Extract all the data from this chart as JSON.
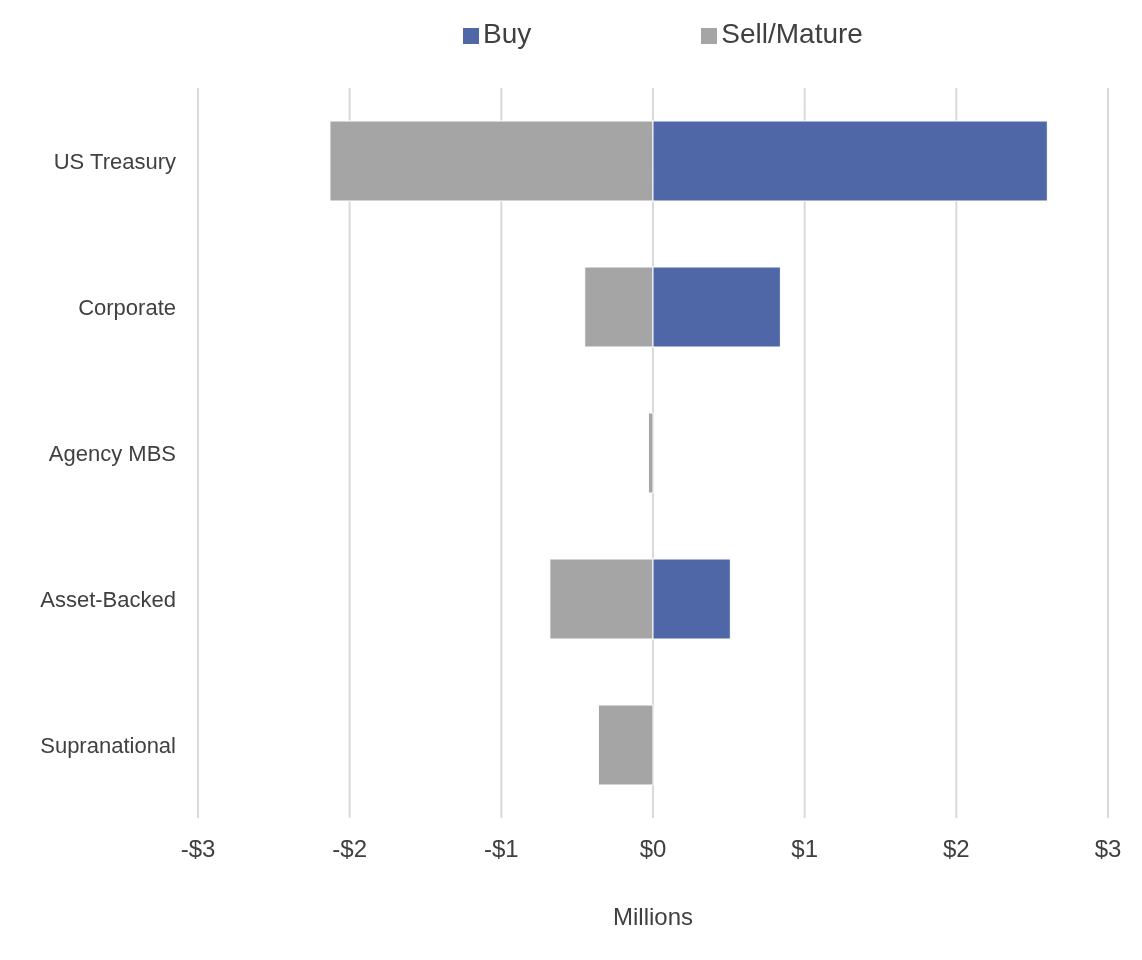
{
  "chart_data": {
    "type": "bar",
    "orientation": "horizontal",
    "stacked": true,
    "categories": [
      "US Treasury",
      "Corporate",
      "Agency MBS",
      "Asset-Backed",
      "Supranational"
    ],
    "series": [
      {
        "name": "Sell/Mature",
        "color": "#a5a5a5",
        "values": [
          -2.13,
          -0.45,
          -0.03,
          -0.68,
          -0.36
        ]
      },
      {
        "name": "Buy",
        "color": "#4f67a6",
        "values": [
          2.6,
          0.84,
          0,
          0.51,
          0
        ]
      }
    ],
    "xlim": [
      -3,
      3
    ],
    "xticks": [
      {
        "value": -3,
        "label": "-$3"
      },
      {
        "value": -2,
        "label": "-$2"
      },
      {
        "value": -1,
        "label": "-$1"
      },
      {
        "value": 0,
        "label": "$0"
      },
      {
        "value": 1,
        "label": "$1"
      },
      {
        "value": 2,
        "label": "$2"
      },
      {
        "value": 3,
        "label": "$3"
      }
    ],
    "xlabel": "Millions",
    "grid": "x",
    "legend": "top"
  }
}
